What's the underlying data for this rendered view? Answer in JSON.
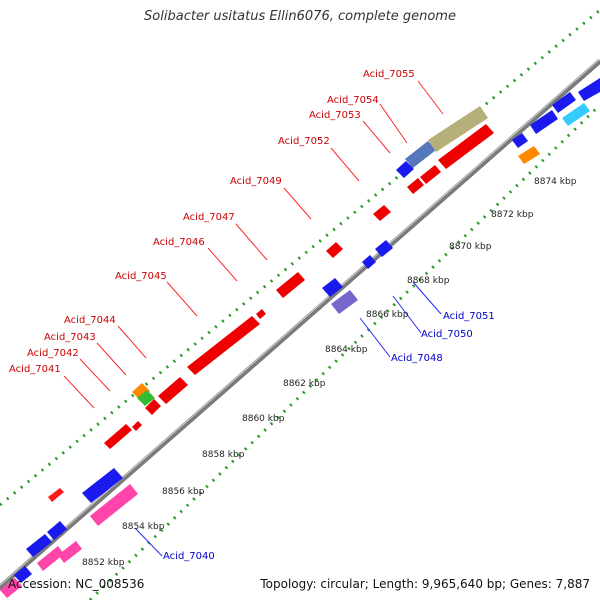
{
  "title": "Solibacter usitatus Ellin6076, complete genome",
  "footer": {
    "accession": "Accession: NC_008536",
    "stats": "Topology: circular; Length: 9,965,640 bp; Genes: 7,887"
  },
  "colors": {
    "backbone": "#7a7a7a",
    "tick_dots": "#2a9a2a",
    "top_labels": "#cc0000",
    "bottom_labels": "#0000cc",
    "leader_top": "#ff2a2a",
    "leader_bottom": "#2a2aff"
  },
  "kbp_labels": [
    "8852 kbp",
    "8854 kbp",
    "8856 kbp",
    "8858 kbp",
    "8860 kbp",
    "8862 kbp",
    "8864 kbp",
    "8866 kbp",
    "8868 kbp",
    "8870 kbp",
    "8872 kbp",
    "8874 kbp"
  ],
  "top_labels": [
    "Acid_7041",
    "Acid_7042",
    "Acid_7043",
    "Acid_7044",
    "Acid_7045",
    "Acid_7046",
    "Acid_7047",
    "Acid_7049",
    "Acid_7052",
    "Acid_7053",
    "Acid_7054",
    "Acid_7055"
  ],
  "bottom_labels": [
    "Acid_7040",
    "Acid_7048",
    "Acid_7050",
    "Acid_7051"
  ]
}
